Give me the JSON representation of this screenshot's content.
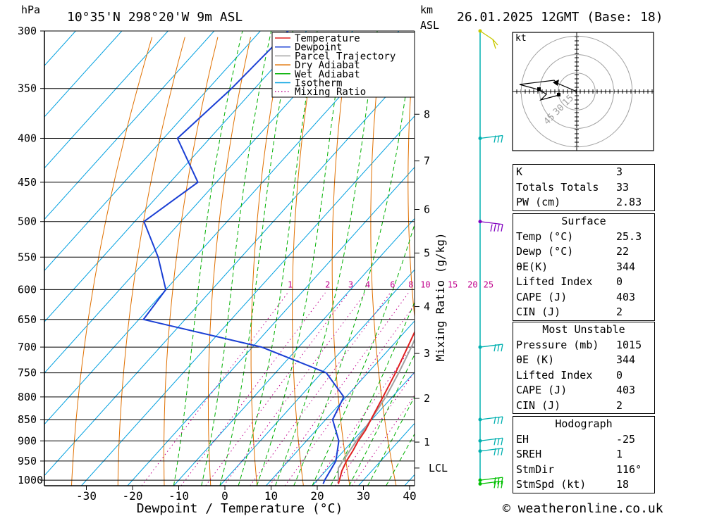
{
  "header": {
    "hpa_label": "hPa",
    "location": "10°35'N  298°20'W  9m  ASL",
    "km_label": "km",
    "asl_label": "ASL",
    "datetime": "26.01.2025  12GMT  (Base: 18)"
  },
  "footer": {
    "credit": "© weatheronline.co.uk"
  },
  "colors": {
    "temperature": "#e02020",
    "dewpoint": "#1a3fd4",
    "parcel": "#a0a0a0",
    "dry_adiabat": "#e07000",
    "wet_adiabat": "#00b000",
    "isotherm": "#00a0e0",
    "mixing_ratio": "#c0008c",
    "wind_cyan": "#00b0b0",
    "wind_purple": "#8000c0",
    "wind_green": "#00c000",
    "wind_yellow": "#c8c800"
  },
  "legend": [
    {
      "label": "Temperature",
      "color": "#e02020",
      "style": "solid"
    },
    {
      "label": "Dewpoint",
      "color": "#1a3fd4",
      "style": "solid"
    },
    {
      "label": "Parcel Trajectory",
      "color": "#a0a0a0",
      "style": "solid"
    },
    {
      "label": "Dry Adiabat",
      "color": "#e07000",
      "style": "solid"
    },
    {
      "label": "Wet Adiabat",
      "color": "#00b000",
      "style": "solid"
    },
    {
      "label": "Isotherm",
      "color": "#00a0e0",
      "style": "solid"
    },
    {
      "label": "Mixing Ratio",
      "color": "#c0008c",
      "style": "dotted"
    }
  ],
  "chart_data": {
    "type": "line",
    "title": "10°35'N  298°20'W  9m  ASL",
    "xlabel": "Dewpoint / Temperature (°C)",
    "ylabel": "hPa",
    "secondary_ylabel": "Mixing Ratio (g/kg)",
    "x_ticks": [
      "-30",
      "-20",
      "-10",
      "0",
      "10",
      "20",
      "30",
      "40"
    ],
    "xlim": [
      -40,
      40
    ],
    "y_ticks": [
      "300",
      "350",
      "400",
      "450",
      "500",
      "550",
      "600",
      "650",
      "700",
      "750",
      "800",
      "850",
      "900",
      "950",
      "1000"
    ],
    "ylim": [
      1000,
      300
    ],
    "y_scale": "log",
    "km_ticks": [
      {
        "label": "8",
        "pressure": 375
      },
      {
        "label": "7",
        "pressure": 425
      },
      {
        "label": "6",
        "pressure": 484
      },
      {
        "label": "5",
        "pressure": 544
      },
      {
        "label": "4",
        "pressure": 628
      },
      {
        "label": "3",
        "pressure": 712
      },
      {
        "label": "2",
        "pressure": 803
      },
      {
        "label": "1",
        "pressure": 903
      },
      {
        "label": "LCL",
        "pressure": 968
      }
    ],
    "mixing_ratio_labels": [
      "1",
      "2",
      "3",
      "4",
      "6",
      "8",
      "10",
      "15",
      "20",
      "25"
    ],
    "mixing_ratio_values": [
      1,
      2,
      3,
      4,
      6,
      8,
      10,
      15,
      20,
      25
    ],
    "mixing_ratio_label_pressure": 600,
    "series": [
      {
        "name": "Temperature",
        "pressure": [
          1010,
          1000,
          975,
          950,
          925,
          900,
          875,
          850,
          800,
          750,
          700,
          650,
          600,
          550,
          500,
          450,
          400,
          375,
          360,
          300
        ],
        "temperature": [
          25.3,
          24.8,
          23.5,
          22.6,
          22,
          21.2,
          20.7,
          19.8,
          18,
          16,
          13.6,
          11,
          6,
          1,
          -6,
          -14,
          -24,
          -29,
          -33,
          -45
        ]
      },
      {
        "name": "Dewpoint",
        "pressure": [
          1010,
          1000,
          950,
          900,
          850,
          800,
          750,
          700,
          650,
          600,
          550,
          500,
          450,
          400,
          350,
          300
        ],
        "temperature": [
          22,
          21.6,
          20.3,
          17,
          11.5,
          9.5,
          1,
          -18,
          -49,
          -50,
          -58,
          -68,
          -64,
          -77,
          -75,
          -74
        ]
      },
      {
        "name": "Parcel Trajectory",
        "pressure": [
          1010,
          968,
          950,
          900,
          850,
          800,
          750,
          700,
          650,
          600,
          550,
          500,
          450,
          400,
          360,
          340
        ],
        "temperature": [
          25.3,
          22.2,
          21.8,
          20.8,
          19.8,
          18.6,
          16.7,
          14.4,
          11.6,
          7.8,
          3.5,
          -2.7,
          -11.2,
          -22.5,
          -31.5,
          -37
        ]
      }
    ],
    "hodograph": {
      "unit_label": "kt",
      "ring_labels": [
        "15",
        "30",
        "45"
      ],
      "ring_values": [
        15,
        30,
        45
      ]
    },
    "wind_levels_pressure": [
      300,
      400,
      500,
      700,
      850,
      900,
      925,
      1000,
      1010
    ]
  },
  "indices": {
    "rows": [
      {
        "label": "K",
        "value": "3"
      },
      {
        "label": "Totals Totals",
        "value": "33"
      },
      {
        "label": "PW (cm)",
        "value": "2.83"
      }
    ]
  },
  "surface": {
    "title": "Surface",
    "rows": [
      {
        "label": "Temp (°C)",
        "value": "25.3"
      },
      {
        "label": "Dewp (°C)",
        "value": "22"
      },
      {
        "label": "θE(K)",
        "value": "344"
      },
      {
        "label": "Lifted Index",
        "value": "0"
      },
      {
        "label": "CAPE (J)",
        "value": "403"
      },
      {
        "label": "CIN (J)",
        "value": "2"
      }
    ]
  },
  "most_unstable": {
    "title": "Most Unstable",
    "rows": [
      {
        "label": "Pressure (mb)",
        "value": "1015"
      },
      {
        "label": "θE (K)",
        "value": "344"
      },
      {
        "label": "Lifted Index",
        "value": "0"
      },
      {
        "label": "CAPE (J)",
        "value": "403"
      },
      {
        "label": "CIN (J)",
        "value": "2"
      }
    ]
  },
  "hodograph_table": {
    "title": "Hodograph",
    "rows": [
      {
        "label": "EH",
        "value": "-25"
      },
      {
        "label": "SREH",
        "value": "1"
      },
      {
        "label": "StmDir",
        "value": "116°"
      },
      {
        "label": "StmSpd (kt)",
        "value": "18"
      }
    ]
  }
}
